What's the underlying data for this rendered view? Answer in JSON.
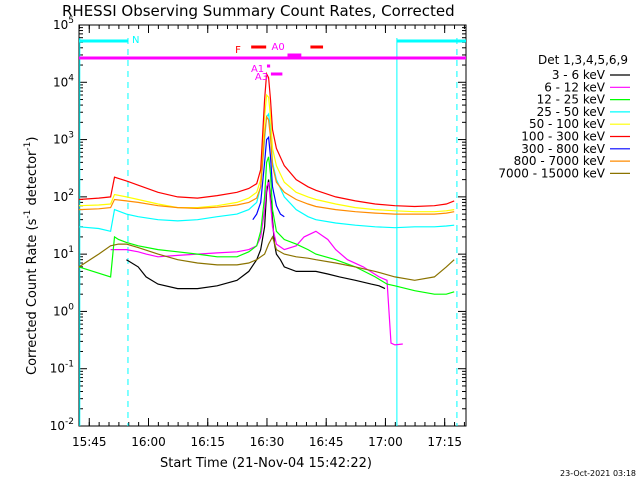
{
  "chart_data": {
    "type": "line",
    "title": "RHESSI Observing Summary Count Rates, Corrected",
    "xlabel": "Start Time (21-Nov-04 15:42:22)",
    "ylabel_main": "Corrected Count Rate (s",
    "ylabel_sup1": "-1",
    "ylabel_mid": " detector",
    "ylabel_sup2": "-1",
    "ylabel_end": ")",
    "x_unit": "minutes after 15:42:22 (21-Nov-04)",
    "xlim": [
      0,
      98
    ],
    "ylim": [
      0.01,
      100000
    ],
    "yscale": "log",
    "x_ticks": [
      {
        "label": "15:45",
        "value": 2.6
      },
      {
        "label": "16:00",
        "value": 17.6
      },
      {
        "label": "16:15",
        "value": 32.6
      },
      {
        "label": "16:30",
        "value": 47.6
      },
      {
        "label": "16:45",
        "value": 62.6
      },
      {
        "label": "17:00",
        "value": 77.6
      },
      {
        "label": "17:15",
        "value": 92.6
      }
    ],
    "y_ticks": [
      {
        "base": "10",
        "exp": "-2",
        "value": 0.01
      },
      {
        "base": "10",
        "exp": "-1",
        "value": 0.1
      },
      {
        "base": "10",
        "exp": "0",
        "value": 1
      },
      {
        "base": "10",
        "exp": "1",
        "value": 10
      },
      {
        "base": "10",
        "exp": "2",
        "value": 100
      },
      {
        "base": "10",
        "exp": "3",
        "value": 1000
      },
      {
        "base": "10",
        "exp": "4",
        "value": 10000
      },
      {
        "base": "10",
        "exp": "5",
        "value": 100000
      }
    ],
    "legend_title": "Det 1,3,4,5,6,9",
    "legend_position": "right",
    "series": [
      {
        "name": "3 - 6 keV",
        "color": "#000000",
        "x": [
          0,
          8,
          12,
          15,
          17,
          20,
          25,
          30,
          35,
          40,
          43,
          45,
          46,
          47,
          47.5,
          48,
          48.5,
          49,
          49.5,
          50,
          51,
          52,
          55,
          58,
          60,
          63,
          66,
          70,
          74,
          76,
          77.5
        ],
        "y": [
          null,
          null,
          8,
          6,
          4,
          3,
          2.5,
          2.5,
          2.8,
          3.5,
          5,
          8,
          12,
          30,
          120,
          200,
          100,
          40,
          15,
          10,
          8,
          6,
          5,
          5,
          5,
          4.5,
          4,
          3.5,
          3,
          2.8,
          2.5
        ]
      },
      {
        "name": "6 - 12 keV",
        "color": "#ff00ff",
        "x": [
          8,
          10,
          12,
          15,
          17,
          20,
          25,
          30,
          35,
          40,
          43,
          45,
          46,
          47,
          47.5,
          48,
          48.5,
          49,
          50,
          52,
          55,
          57,
          60,
          63,
          65,
          68,
          72,
          76,
          78,
          79,
          80,
          82
        ],
        "y": [
          12,
          12,
          12,
          11,
          10,
          9,
          9.5,
          10,
          10.5,
          11,
          12,
          14,
          20,
          60,
          150,
          180,
          80,
          30,
          15,
          12,
          14,
          20,
          25,
          18,
          12,
          8,
          6,
          4,
          3.5,
          0.28,
          0.26,
          0.27
        ]
      },
      {
        "name": "12 - 25 keV",
        "color": "#00ff00",
        "x": [
          0,
          8,
          9,
          10,
          12,
          15,
          20,
          25,
          30,
          35,
          40,
          43,
          45,
          46,
          47,
          47.5,
          48,
          48.5,
          49,
          50,
          52,
          55,
          58,
          60,
          65,
          70,
          75,
          78,
          80,
          85,
          90,
          93,
          95
        ],
        "y": [
          6,
          4,
          20,
          18,
          16,
          14,
          12,
          11,
          10,
          9,
          9,
          11,
          14,
          25,
          100,
          400,
          500,
          250,
          60,
          25,
          18,
          15,
          12,
          10,
          8,
          6,
          4,
          3,
          2.8,
          2.3,
          2,
          2,
          2.2
        ]
      },
      {
        "name": "25 - 50 keV",
        "color": "#00ffff",
        "x": [
          0,
          5,
          8,
          9,
          12,
          15,
          20,
          25,
          30,
          35,
          40,
          43,
          45,
          46,
          47,
          47.5,
          48,
          48.5,
          49,
          50,
          52,
          55,
          58,
          60,
          65,
          70,
          75,
          80,
          85,
          90,
          93,
          95
        ],
        "y": [
          30,
          28,
          25,
          60,
          50,
          45,
          40,
          38,
          40,
          45,
          50,
          60,
          80,
          150,
          1000,
          2500,
          2800,
          1500,
          400,
          200,
          100,
          60,
          45,
          40,
          35,
          32,
          30,
          29,
          30,
          30,
          31,
          32
        ]
      },
      {
        "name": "50 - 100 keV",
        "color": "#ffff00",
        "x": [
          0,
          5,
          8,
          9,
          12,
          15,
          20,
          25,
          30,
          35,
          40,
          43,
          45,
          46,
          47,
          47.5,
          48,
          48.5,
          49,
          50,
          52,
          55,
          58,
          60,
          65,
          70,
          75,
          80,
          85,
          90,
          93,
          95
        ],
        "y": [
          70,
          72,
          75,
          110,
          100,
          90,
          75,
          65,
          65,
          70,
          80,
          95,
          120,
          200,
          2500,
          6000,
          5500,
          2500,
          700,
          350,
          180,
          120,
          100,
          90,
          75,
          65,
          60,
          57,
          55,
          55,
          57,
          60
        ]
      },
      {
        "name": "100 - 300 keV",
        "color": "#ff0000",
        "x": [
          0,
          5,
          8,
          9,
          12,
          15,
          20,
          25,
          30,
          35,
          40,
          43,
          45,
          46,
          47,
          47.5,
          48,
          48.5,
          49,
          50,
          52,
          55,
          58,
          60,
          65,
          70,
          75,
          80,
          85,
          90,
          93,
          95
        ],
        "y": [
          90,
          95,
          100,
          220,
          190,
          160,
          120,
          100,
          95,
          105,
          120,
          140,
          170,
          300,
          5000,
          14000,
          12000,
          5000,
          1500,
          700,
          350,
          200,
          150,
          130,
          100,
          85,
          75,
          70,
          68,
          70,
          75,
          85
        ]
      },
      {
        "name": "300 - 800 keV",
        "color": "#0000ff",
        "x": [
          44,
          45,
          46,
          47,
          47.5,
          48,
          48.5,
          49,
          50,
          51,
          52
        ],
        "y": [
          40,
          50,
          80,
          400,
          1000,
          1100,
          500,
          150,
          70,
          50,
          45
        ]
      },
      {
        "name": "800 - 7000 keV",
        "color": "#ff8c00",
        "x": [
          0,
          5,
          8,
          9,
          12,
          15,
          20,
          25,
          30,
          35,
          40,
          43,
          45,
          46,
          47,
          47.5,
          48,
          48.5,
          49,
          50,
          52,
          55,
          58,
          60,
          65,
          70,
          75,
          80,
          85,
          90,
          93,
          95
        ],
        "y": [
          60,
          62,
          65,
          90,
          85,
          80,
          70,
          65,
          63,
          66,
          72,
          80,
          95,
          150,
          1200,
          2500,
          2200,
          1100,
          350,
          180,
          120,
          90,
          75,
          68,
          60,
          55,
          52,
          50,
          50,
          50,
          52,
          55
        ]
      },
      {
        "name": "7000 - 15000 keV",
        "color": "#8b7300",
        "x": [
          0,
          5,
          8,
          10,
          12,
          15,
          20,
          25,
          30,
          35,
          40,
          43,
          45,
          46,
          47,
          48,
          49,
          50,
          52,
          55,
          58,
          60,
          65,
          70,
          75,
          80,
          85,
          90,
          93,
          95
        ],
        "y": [
          6,
          10,
          14,
          15,
          15,
          13,
          10,
          8,
          7,
          6.5,
          6.5,
          7,
          8,
          9,
          10,
          15,
          20,
          12,
          10,
          9,
          8.5,
          8,
          7,
          6,
          5,
          4,
          3.5,
          4,
          6,
          8
        ]
      }
    ],
    "state_bars": [
      {
        "label": "N",
        "color": "#00ffff",
        "row": "N",
        "segments": [
          [
            0,
            12.4
          ],
          [
            80.5,
            98
          ]
        ]
      },
      {
        "label": "",
        "color": "#ff00ff",
        "row": "S",
        "segments": [
          [
            0,
            98
          ]
        ]
      },
      {
        "label": "F",
        "color": "#ff0000",
        "row": "F",
        "segments": [
          [
            43.6,
            47.4
          ],
          [
            58.6,
            61.8
          ]
        ]
      },
      {
        "label": "A0",
        "color": "#ff00ff",
        "row": "A0",
        "segments": [
          [
            52.8,
            56.3
          ]
        ]
      },
      {
        "label": "A1",
        "color": "#ff00ff",
        "row": "A1",
        "segments": [
          [
            47.6,
            48.4
          ]
        ]
      },
      {
        "label": "A3",
        "color": "#ff00ff",
        "row": "A3",
        "segments": [
          [
            48.6,
            51.5
          ]
        ]
      }
    ],
    "vertical_markers": [
      {
        "x": 0.2,
        "style": "solid",
        "color": "#00ffff"
      },
      {
        "x": 12.4,
        "style": "dashed",
        "color": "#00ffff"
      },
      {
        "x": 80.5,
        "style": "solid",
        "color": "#00ffff"
      },
      {
        "x": 95.7,
        "style": "dashed",
        "color": "#00ffff"
      }
    ]
  },
  "footer_date": "23-Oct-2021 03:18"
}
